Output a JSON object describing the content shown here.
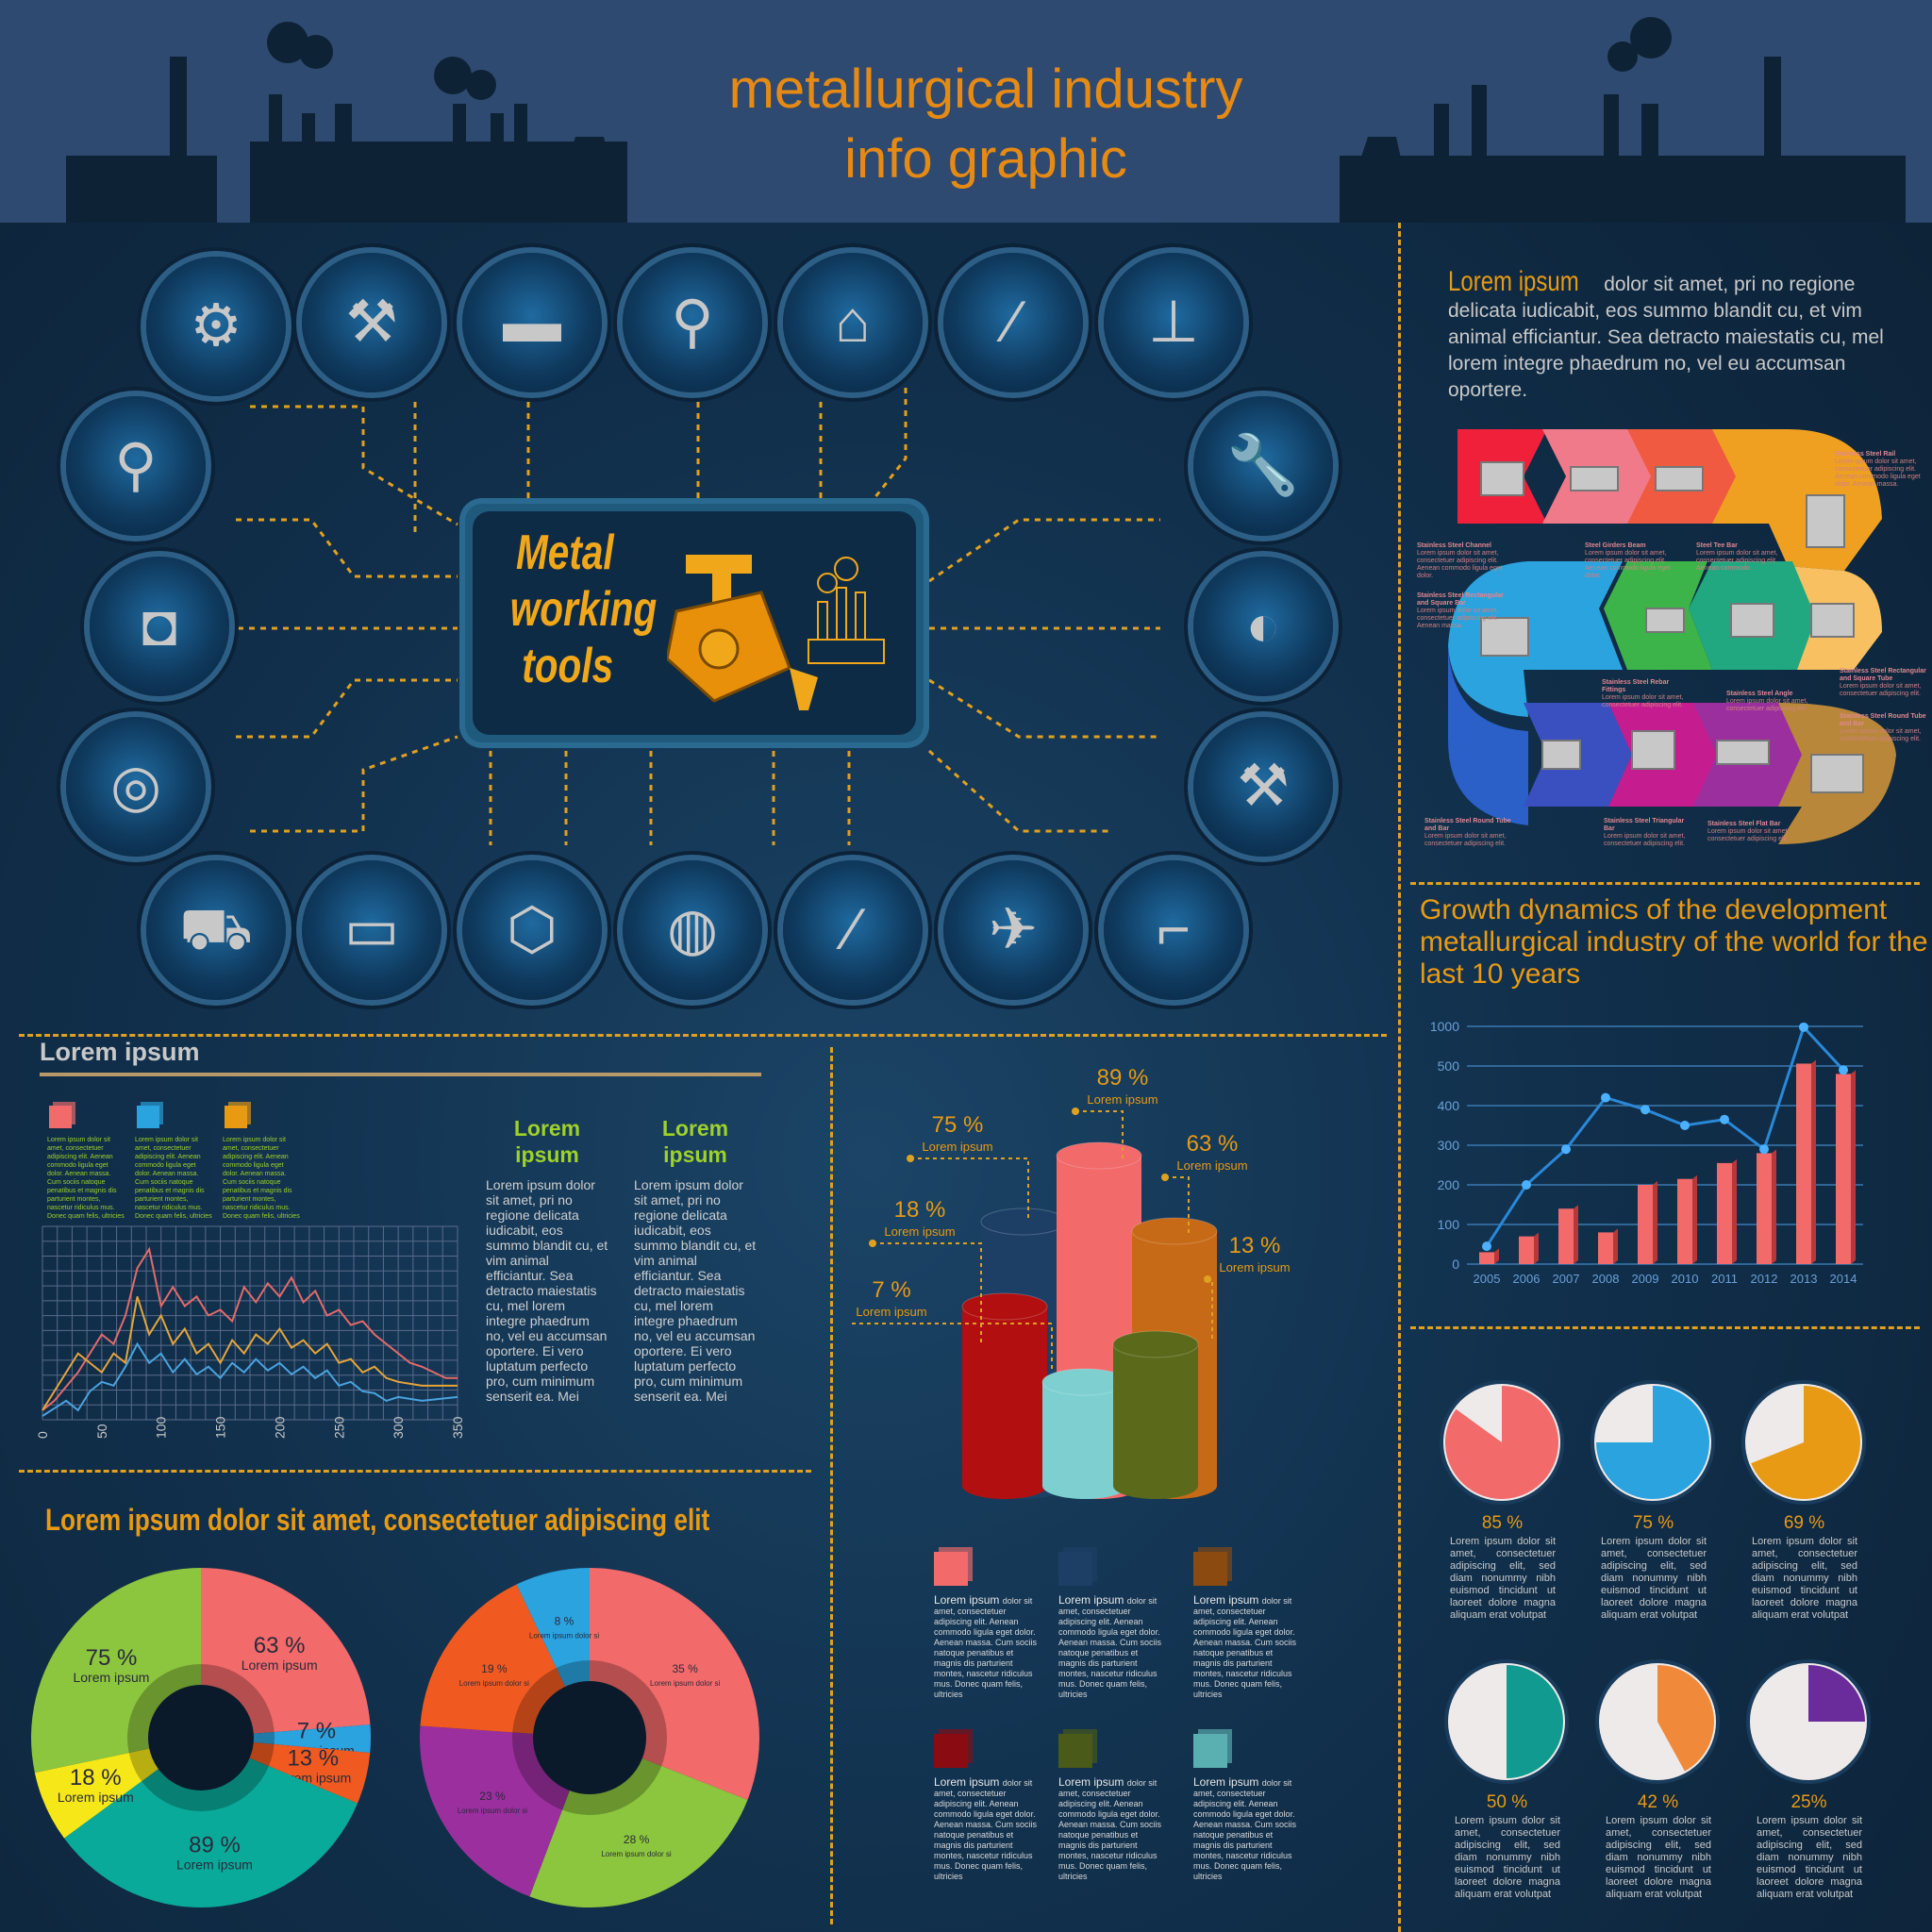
{
  "header": {
    "title_line1": "metallurgical industry",
    "title_line2": "info graphic"
  },
  "center_panel": {
    "line1": "Metal",
    "line2": "working",
    "line3": "tools"
  },
  "icons": [
    "grinder-icon",
    "hammer-icon",
    "anvil-icon",
    "screw-icon",
    "factory-icon",
    "nail-icon",
    "drill-press-icon",
    "bolt-icon",
    "wrench-icon",
    "welding-mask-icon",
    "angle-grinder-icon",
    "bearing-icon",
    "hammers-icon",
    "dump-truck-icon",
    "lathe-icon",
    "nut-bolt-icon",
    "bench-grinder-icon",
    "screwdriver-icon",
    "spray-gun-icon",
    "drill-icon"
  ],
  "top_right": {
    "lead": "Lorem ipsum",
    "text": " dolor sit amet, pri no regione delicata iudicabit, eos summo blandit cu, et vim animal efficiantur. Sea detracto maiestatis cu, mel lorem integre phaedrum no, vel eu accumsan oportere."
  },
  "steel_labels": [
    {
      "title": "Stainless Steel Rail",
      "desc": "Lorem ipsum dolor sit amet, consectetuer adipiscing elit. Aenean commodo ligula eget dolor. Aenean massa."
    },
    {
      "title": "Stainless Steel Channel",
      "desc": "Lorem ipsum dolor sit amet, consectetuer adipiscing elit. Aenean commodo ligula eget dolor."
    },
    {
      "title": "Steel Girders Beam",
      "desc": "Lorem ipsum dolor sit amet, consectetuer adipiscing elit. Aenean commodo ligula eget dolor."
    },
    {
      "title": "Steel Tee Bar",
      "desc": "Lorem ipsum dolor sit amet, consectetuer adipiscing elit. Aenean commodo."
    },
    {
      "title": "Stainless Steel Rectangular and Square Bar",
      "desc": "Lorem ipsum dolor sit amet, consectetuer adipiscing elit. Aenean massa."
    },
    {
      "title": "Stainless Steel Rebar Fittings",
      "desc": "Lorem ipsum dolor sit amet, consectetuer adipiscing elit."
    },
    {
      "title": "Stainless Steel Angle",
      "desc": "Lorem ipsum dolor sit amet, consectetuer adipiscing elit."
    },
    {
      "title": "Stainless Steel Rectangular and Square Tube",
      "desc": "Lorem ipsum dolor sit amet, consectetuer adipiscing elit."
    },
    {
      "title": "Stainless Steel Round Tube and Bar",
      "desc": "Lorem ipsum dolor sit amet, consectetuer adipiscing elit."
    },
    {
      "title": "Stainless Steel Round Tube and Bar",
      "desc": "Lorem ipsum dolor sit amet, consectetuer adipiscing elit."
    },
    {
      "title": "Stainless Steel Triangular Bar",
      "desc": "Lorem ipsum dolor sit amet, consectetuer adipiscing elit."
    },
    {
      "title": "Stainless Steel Flat Bar",
      "desc": "Lorem ipsum dolor sit amet, consectetuer adipiscing elit."
    }
  ],
  "colors": {
    "orange": "#e89a14",
    "green": "#9ed12a",
    "red": "#f45a5a",
    "blue": "#2aa3df",
    "accent": "#f26a6a"
  },
  "lorem_left": {
    "heading": "Lorem ipsum",
    "legend_text": "Lorem ipsum dolor sit amet, consectetuer adipiscing elit. Aenean commodo ligula eget dolor. Aenean massa. Cum sociis natoque penatibus et magnis dis parturient montes, nascetur ridiculus mus. Donec quam felis, ultricies",
    "col_title": "Lorem ipsum",
    "col_text": "Lorem ipsum dolor sit amet, pri no regione delicata iudicabit, eos summo blandit cu, et vim animal efficiantur. Sea detracto maiestatis cu, mel lorem integre phaedrum no, vel eu accumsan oportere. Ei vero luptatum perfecto pro, cum minimum senserit ea. Mei"
  },
  "donut_heading": "Lorem ipsum dolor sit amet, consectetuer adipiscing elit",
  "cyl_legend_text": "dolor sit amet, consectetuer adipiscing elit. Aenean commodo ligula eget dolor. Aenean massa. Cum sociis natoque penatibus et magnis dis parturient montes, nascetur ridiculus mus. Donec quam felis, ultricies",
  "pie_text": "Lorem ipsum dolor sit amet, consectetuer adipiscing elit, sed diam nonummy nibh euismod tincidunt ut laoreet dolore magna aliquam erat volutpat",
  "growth_title": "Growth dynamics of the development metallurgical industry of the world for the last  10 years",
  "chart_data": [
    {
      "type": "line",
      "xlim": [
        0,
        350
      ],
      "x_ticks": [
        "0",
        "50",
        "100",
        "150",
        "200",
        "250",
        "300",
        "350"
      ],
      "series": [
        {
          "color": "#e26a6a",
          "values": [
            [
              0,
              5
            ],
            [
              10,
              10
            ],
            [
              30,
              25
            ],
            [
              50,
              45
            ],
            [
              60,
              40
            ],
            [
              70,
              55
            ],
            [
              80,
              80
            ],
            [
              90,
              90
            ],
            [
              100,
              60
            ],
            [
              110,
              70
            ],
            [
              120,
              60
            ],
            [
              130,
              65
            ],
            [
              140,
              55
            ],
            [
              150,
              58
            ],
            [
              160,
              52
            ],
            [
              170,
              70
            ],
            [
              180,
              62
            ],
            [
              190,
              72
            ],
            [
              200,
              65
            ],
            [
              210,
              75
            ],
            [
              220,
              62
            ],
            [
              230,
              68
            ],
            [
              240,
              55
            ],
            [
              250,
              58
            ],
            [
              260,
              50
            ],
            [
              270,
              52
            ],
            [
              280,
              45
            ],
            [
              290,
              40
            ],
            [
              300,
              35
            ],
            [
              310,
              30
            ],
            [
              320,
              28
            ],
            [
              330,
              25
            ],
            [
              340,
              22
            ],
            [
              350,
              22
            ]
          ]
        },
        {
          "color": "#e5a53a",
          "values": [
            [
              0,
              5
            ],
            [
              10,
              15
            ],
            [
              30,
              35
            ],
            [
              40,
              30
            ],
            [
              50,
              25
            ],
            [
              60,
              35
            ],
            [
              70,
              30
            ],
            [
              80,
              65
            ],
            [
              90,
              45
            ],
            [
              100,
              55
            ],
            [
              110,
              40
            ],
            [
              120,
              48
            ],
            [
              130,
              35
            ],
            [
              140,
              40
            ],
            [
              150,
              30
            ],
            [
              160,
              42
            ],
            [
              170,
              35
            ],
            [
              180,
              45
            ],
            [
              190,
              40
            ],
            [
              200,
              48
            ],
            [
              210,
              38
            ],
            [
              220,
              42
            ],
            [
              230,
              35
            ],
            [
              240,
              40
            ],
            [
              250,
              30
            ],
            [
              260,
              32
            ],
            [
              270,
              25
            ],
            [
              280,
              28
            ],
            [
              290,
              22
            ],
            [
              300,
              20
            ],
            [
              320,
              18
            ],
            [
              350,
              18
            ]
          ]
        },
        {
          "color": "#4aa3df",
          "values": [
            [
              0,
              2
            ],
            [
              10,
              6
            ],
            [
              20,
              10
            ],
            [
              30,
              5
            ],
            [
              40,
              15
            ],
            [
              50,
              20
            ],
            [
              60,
              18
            ],
            [
              70,
              28
            ],
            [
              80,
              40
            ],
            [
              90,
              30
            ],
            [
              100,
              35
            ],
            [
              110,
              25
            ],
            [
              120,
              32
            ],
            [
              130,
              24
            ],
            [
              140,
              28
            ],
            [
              150,
              22
            ],
            [
              160,
              30
            ],
            [
              170,
              25
            ],
            [
              180,
              32
            ],
            [
              190,
              26
            ],
            [
              200,
              30
            ],
            [
              210,
              24
            ],
            [
              220,
              28
            ],
            [
              230,
              22
            ],
            [
              240,
              26
            ],
            [
              250,
              18
            ],
            [
              260,
              20
            ],
            [
              270,
              15
            ],
            [
              280,
              14
            ],
            [
              290,
              10
            ],
            [
              300,
              12
            ],
            [
              320,
              10
            ],
            [
              350,
              12
            ]
          ]
        }
      ]
    },
    {
      "type": "bar",
      "title": "Growth dynamics of the development metallurgical industry of the world for the last  10 years",
      "categories": [
        "2005",
        "2006",
        "2007",
        "2008",
        "2009",
        "2010",
        "2011",
        "2012",
        "2013",
        "2014"
      ],
      "y_ticks": [
        "0",
        "100",
        "200",
        "300",
        "400",
        "500",
        "1000"
      ],
      "bars": [
        30,
        70,
        140,
        80,
        200,
        215,
        255,
        280,
        530,
        480
      ],
      "line": [
        45,
        200,
        290,
        420,
        390,
        350,
        365,
        290,
        990,
        490
      ]
    },
    {
      "type": "cylinder",
      "values": [
        {
          "label": "75 %",
          "sub": "Lorem ipsum",
          "value": 75,
          "color": "#1d3f66"
        },
        {
          "label": "89 %",
          "sub": "Lorem ipsum",
          "value": 89,
          "color": "#f26a6a"
        },
        {
          "label": "63 %",
          "sub": "Lorem ipsum",
          "value": 63,
          "color": "#c76a18"
        },
        {
          "label": "18 %",
          "sub": "Lorem ipsum",
          "value": 18,
          "color": "#b21010"
        },
        {
          "label": "13 %",
          "sub": "Lorem ipsum",
          "value": 13,
          "color": "#5a6a1a"
        },
        {
          "label": "7 %",
          "sub": "Lorem ipsum",
          "value": 7,
          "color": "#7ed0d0"
        }
      ]
    },
    {
      "type": "pie",
      "slices": [
        {
          "label": "63 %",
          "sub": "Lorem ipsum",
          "value": 63,
          "color": "#f26a6a"
        },
        {
          "label": "7 %",
          "sub": "Lorem ipsum",
          "value": 7,
          "color": "#2aa3df"
        },
        {
          "label": "13 %",
          "sub": "Lorem ipsum",
          "value": 13,
          "color": "#f05a20"
        },
        {
          "label": "89 %",
          "sub": "Lorem ipsum",
          "value": 89,
          "color": "#0aaa9a"
        },
        {
          "label": "18 %",
          "sub": "Lorem ipsum",
          "value": 18,
          "color": "#f6e818"
        },
        {
          "label": "75 %",
          "sub": "Lorem ipsum",
          "value": 75,
          "color": "#8cc63e"
        }
      ]
    },
    {
      "type": "pie",
      "slices": [
        {
          "label": "35 %",
          "sub": "Lorem ipsum dolor sit amet, consectetuer adipiscing elit",
          "value": 35,
          "color": "#f26a6a"
        },
        {
          "label": "28 %",
          "sub": "Lorem ipsum dolor sit amet, consectetuer adipiscing elit",
          "value": 28,
          "color": "#8cc63e"
        },
        {
          "label": "23 %",
          "sub": "Lorem ipsum dolor sit amet, consectetuer adipiscing elit",
          "value": 23,
          "color": "#9b2f9e"
        },
        {
          "label": "19 %",
          "sub": "Lorem ipsum dolor sit amet, consectetuer adipiscing elit",
          "value": 19,
          "color": "#f05a20"
        },
        {
          "label": "8 %",
          "sub": "Lorem ipsum dolor sit amet, consectetuer adipiscing elit",
          "value": 8,
          "color": "#2aa3df"
        }
      ]
    },
    {
      "type": "pie",
      "small_pies": [
        {
          "label": "85 %",
          "value": 85,
          "color": "#f26a6a"
        },
        {
          "label": "75 %",
          "value": 75,
          "color": "#2aa3df"
        },
        {
          "label": "69 %",
          "value": 69,
          "color": "#e89a14"
        },
        {
          "label": "50 %",
          "value": 50,
          "color": "#109a90"
        },
        {
          "label": "42 %",
          "value": 42,
          "color": "#f08a3a"
        },
        {
          "label": "25%",
          "value": 25,
          "color": "#6a2c9a"
        }
      ]
    }
  ]
}
